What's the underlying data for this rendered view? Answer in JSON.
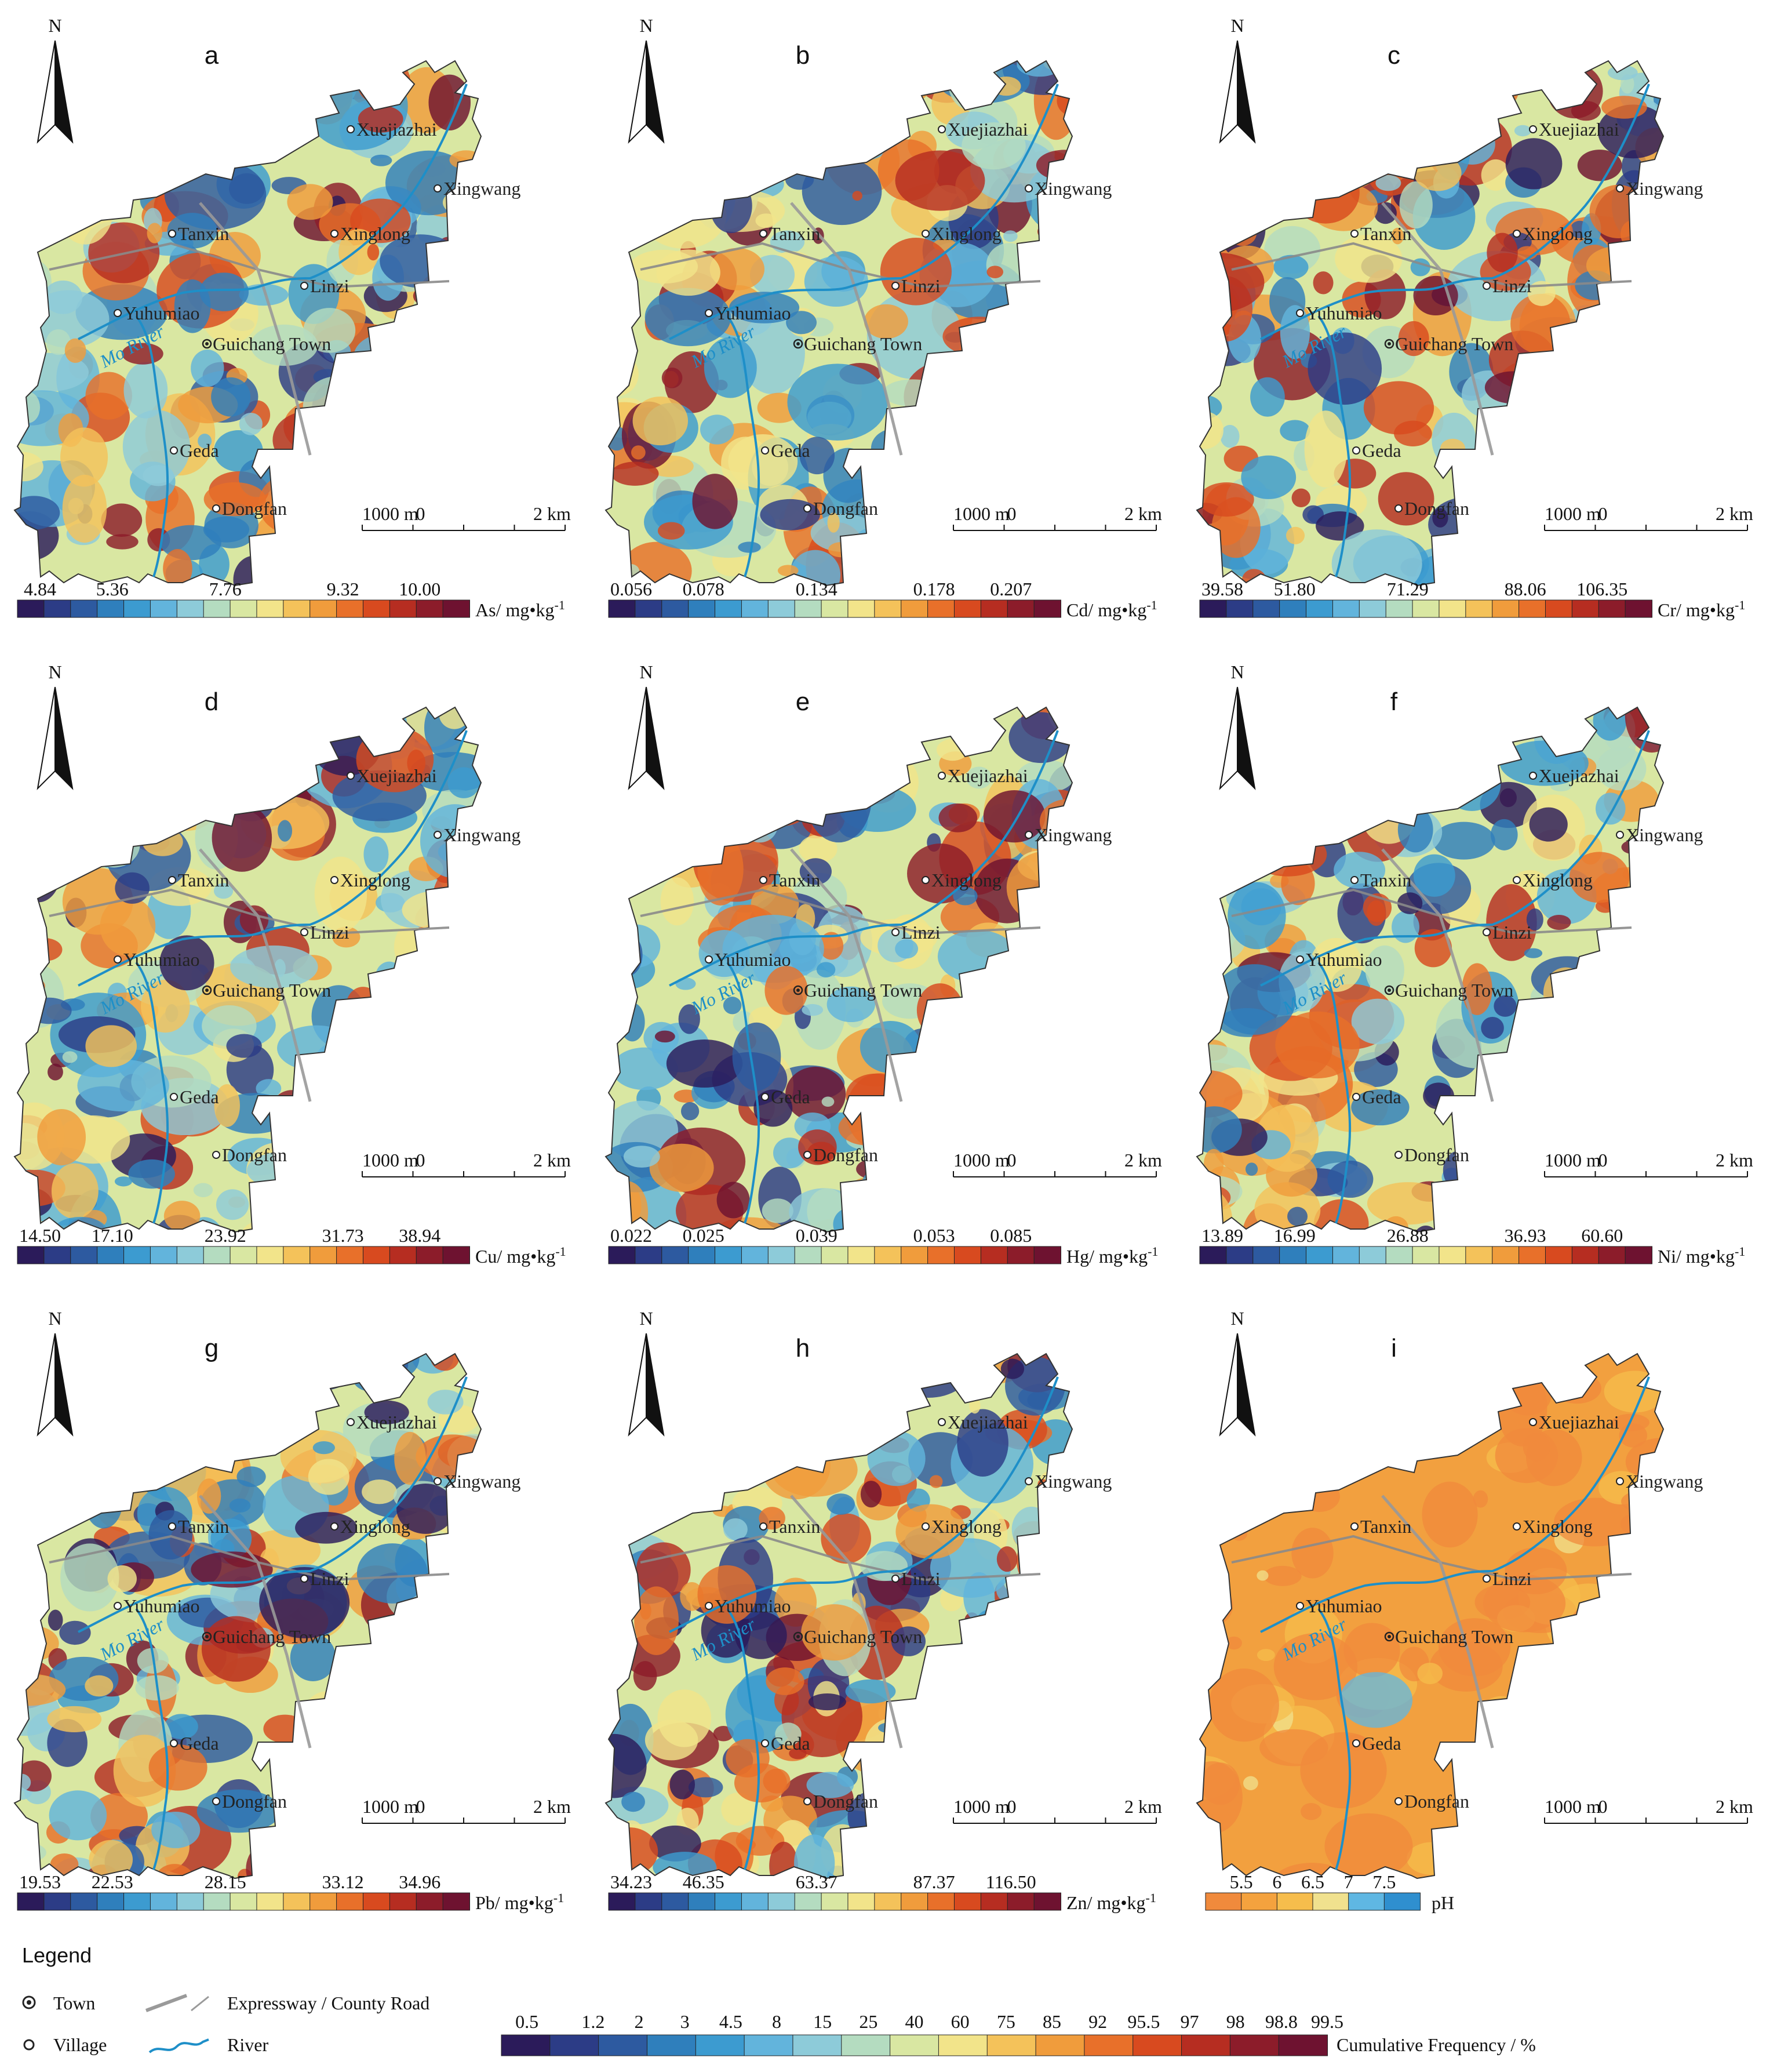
{
  "panels": [
    {
      "letter": "a",
      "unit": "As/ mg•kg",
      "ticks": [
        "4.84",
        "5.36",
        "7.76",
        "9.32",
        "10.00"
      ],
      "kind": "metal"
    },
    {
      "letter": "b",
      "unit": "Cd/ mg•kg",
      "ticks": [
        "0.056",
        "0.078",
        "0.134",
        "0.178",
        "0.207"
      ],
      "kind": "metal"
    },
    {
      "letter": "c",
      "unit": "Cr/ mg•kg",
      "ticks": [
        "39.58",
        "51.80",
        "71.29",
        "88.06",
        "106.35"
      ],
      "kind": "metal"
    },
    {
      "letter": "d",
      "unit": "Cu/ mg•kg",
      "ticks": [
        "14.50",
        "17.10",
        "23.92",
        "31.73",
        "38.94"
      ],
      "kind": "metal"
    },
    {
      "letter": "e",
      "unit": "Hg/ mg•kg",
      "ticks": [
        "0.022",
        "0.025",
        "0.039",
        "0.053",
        "0.085"
      ],
      "kind": "metal"
    },
    {
      "letter": "f",
      "unit": "Ni/ mg•kg",
      "ticks": [
        "13.89",
        "16.99",
        "26.88",
        "36.93",
        "60.60"
      ],
      "kind": "metal"
    },
    {
      "letter": "g",
      "unit": "Pb/ mg•kg",
      "ticks": [
        "19.53",
        "22.53",
        "28.15",
        "33.12",
        "34.96"
      ],
      "kind": "metal"
    },
    {
      "letter": "h",
      "unit": "Zn/ mg•kg",
      "ticks": [
        "34.23",
        "46.35",
        "63.37",
        "87.37",
        "116.50"
      ],
      "kind": "metal"
    },
    {
      "letter": "i",
      "unit": "pH",
      "ticks": [
        "5.5",
        "6",
        "6.5",
        "7",
        "7.5"
      ],
      "kind": "ph"
    }
  ],
  "unit_superscript": "-1",
  "north_label": "N",
  "places": {
    "xuejiazhai": "Xuejiazhai",
    "xingwang": "Xingwang",
    "tanxin": "Tanxin",
    "xinglong": "Xinglong",
    "linzi": "Linzi",
    "yuhumiao": "Yuhumiao",
    "guichang_town": "Guichang Town",
    "geda": "Geda",
    "dongfan": "Dongfan",
    "mo_river": "Mo River"
  },
  "scale_bar": {
    "left": "1000 m",
    "zero": "0",
    "right": "2 km"
  },
  "legend": {
    "title": "Legend",
    "town": "Town",
    "village": "Village",
    "road": "Expressway / County Road",
    "river": "River",
    "cum_freq_ticks": [
      "0.5",
      "1.2",
      "2",
      "3",
      "4.5",
      "8",
      "15",
      "25",
      "40",
      "60",
      "75",
      "85",
      "92",
      "95.5",
      "97",
      "98",
      "98.8",
      "99.5"
    ],
    "cum_freq_label": "Cumulative Frequency / %"
  },
  "colors": {
    "ramp": [
      "#2b1b5a",
      "#2c3c86",
      "#2d5aa0",
      "#2f7fbc",
      "#3c9bd0",
      "#62b4dc",
      "#8dcbd9",
      "#b4dcc0",
      "#d9e7a2",
      "#f2e48a",
      "#f4c25a",
      "#f09c3c",
      "#e8702a",
      "#d84a1f",
      "#b62d21",
      "#8c1c2a",
      "#6e1230"
    ],
    "ph_ramp": [
      "#f08a3c",
      "#f4a23e",
      "#f6bd4c",
      "#f0e18e",
      "#5fb7e3",
      "#2f8fcf"
    ],
    "river": "#1e8fc8",
    "road": "#8a8a8a"
  }
}
